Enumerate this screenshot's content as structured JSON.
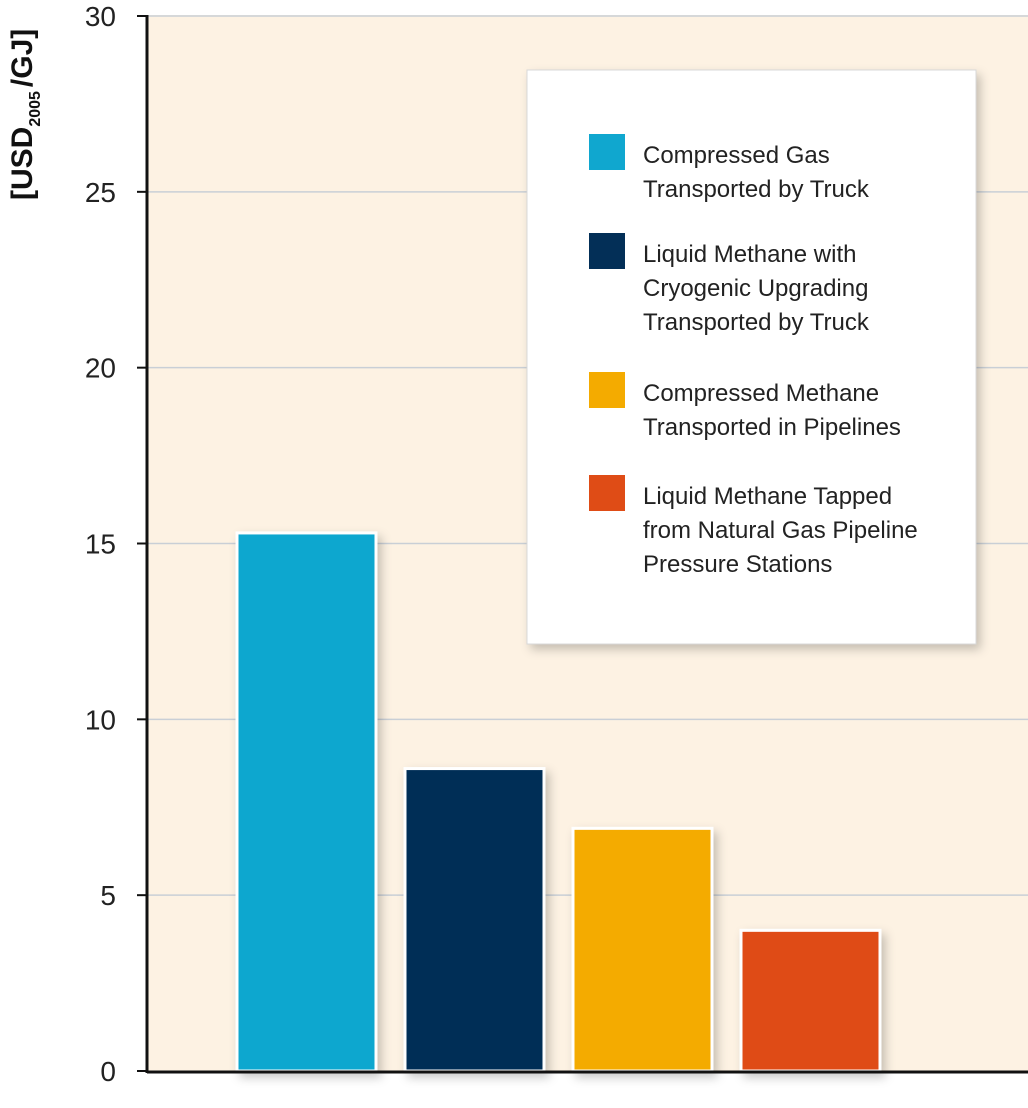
{
  "chart_data": {
    "type": "bar",
    "ylabel": "[USD",
    "ylabel_sub": "2005",
    "ylabel_tail": "/GJ]",
    "ylim": [
      0,
      30
    ],
    "yticks": [
      0,
      5,
      10,
      15,
      20,
      25,
      30
    ],
    "grid": true,
    "legend_position": "top-right",
    "series": [
      {
        "name": "Compressed Gas Transported by Truck",
        "legend_lines": [
          "Compressed Gas",
          "Transported by Truck"
        ],
        "value": 15.3,
        "color": "#10a7cf"
      },
      {
        "name": "Liquid Methane with Cryogenic Upgrading Transported by Truck",
        "legend_lines": [
          "Liquid Methane with",
          "Cryogenic Upgrading",
          "Transported by Truck"
        ],
        "value": 8.6,
        "color": "#032f57"
      },
      {
        "name": "Compressed Methane Transported in Pipelines",
        "legend_lines": [
          "Compressed Methane",
          "Transported in Pipelines"
        ],
        "value": 6.9,
        "color": "#f4ab00"
      },
      {
        "name": "Liquid Methane Tapped from Natural Gas Pipeline Pressure Stations",
        "legend_lines": [
          "Liquid Methane Tapped",
          "from Natural Gas Pipeline",
          "Pressure Stations"
        ],
        "value": 4.0,
        "color": "#df4c16"
      }
    ],
    "colors": {
      "plot_background": "#fdf2e3",
      "grid": "#c9cfd6",
      "axis": "#111111"
    }
  }
}
